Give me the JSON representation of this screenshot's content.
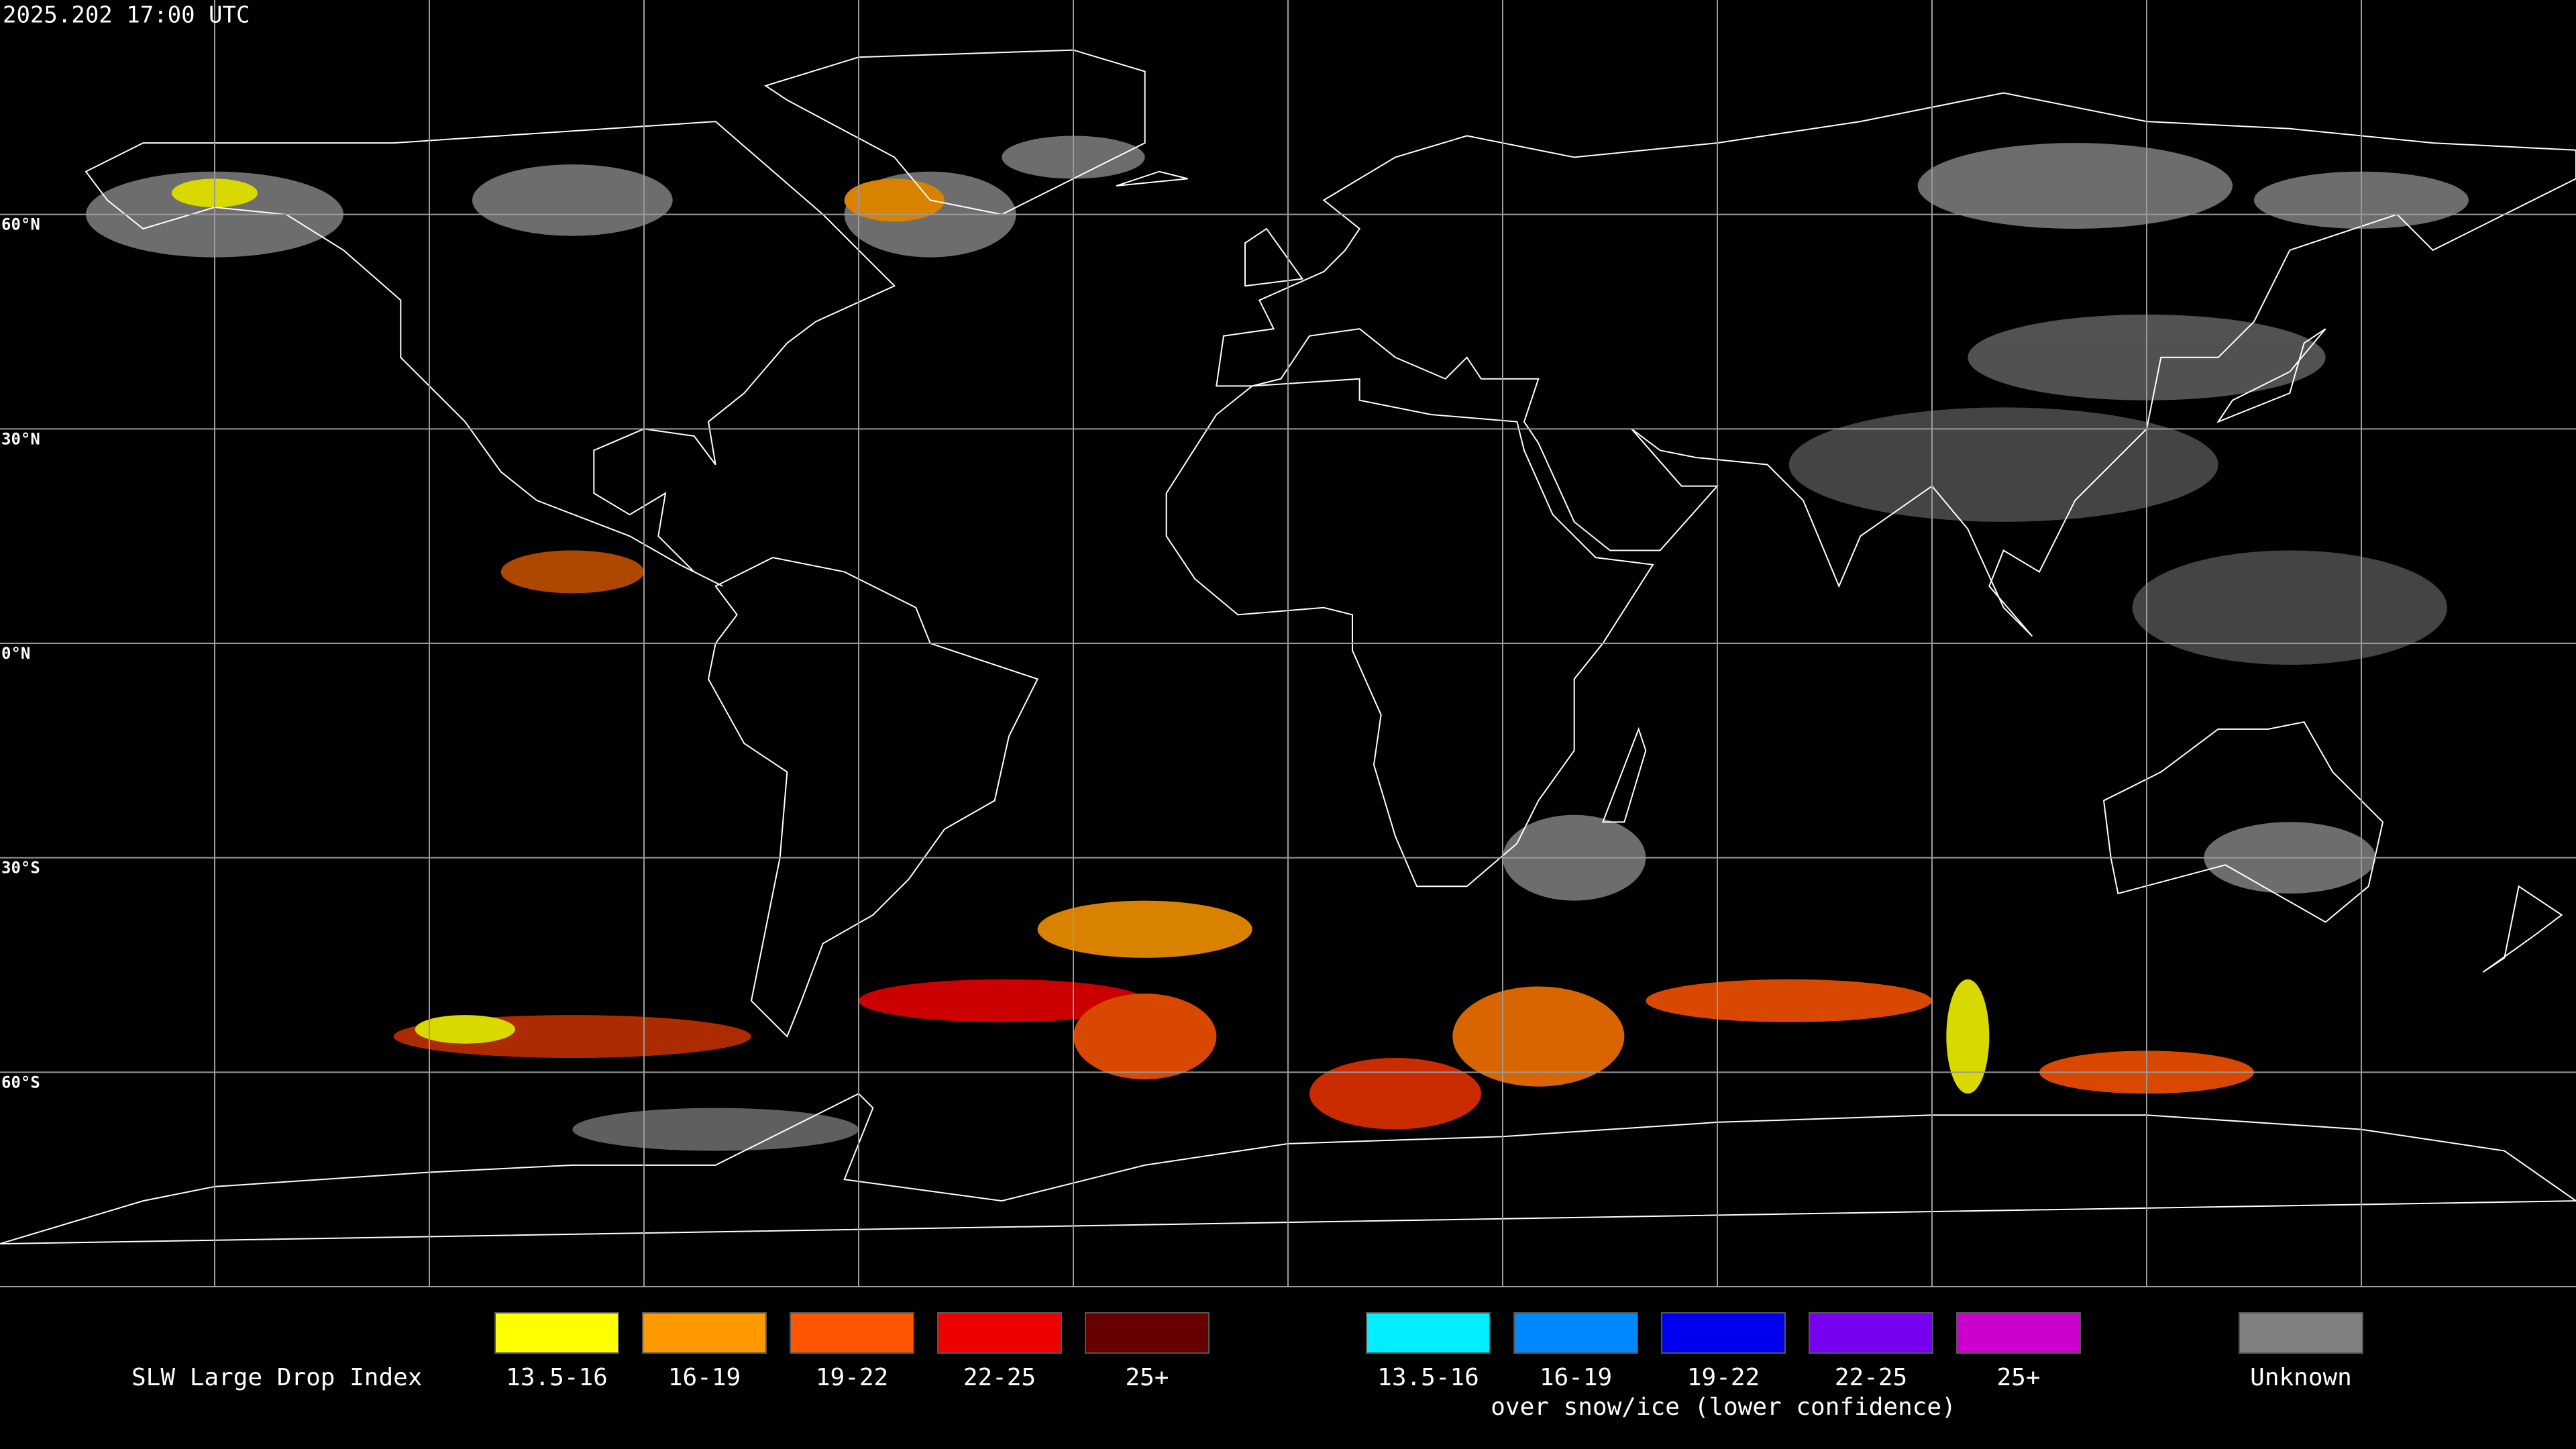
{
  "header": {
    "timestamp": "2025.202 17:00 UTC"
  },
  "map": {
    "latitude_labels": [
      "60°N",
      "30°N",
      "0°N",
      "30°S",
      "60°S"
    ]
  },
  "legend": {
    "title": "SLW Large Drop Index",
    "groups": [
      {
        "items": [
          {
            "label": "13.5-16",
            "color": "#ffff00"
          },
          {
            "label": "16-19",
            "color": "#ff9900"
          },
          {
            "label": "19-22",
            "color": "#ff5500"
          },
          {
            "label": "22-25",
            "color": "#ee0000"
          },
          {
            "label": "25+",
            "color": "#660000"
          }
        ]
      },
      {
        "items": [
          {
            "label": "13.5-16",
            "color": "#00eeff"
          },
          {
            "label": "16-19",
            "color": "#0088ff"
          },
          {
            "label": "19-22",
            "color": "#0000ee"
          },
          {
            "label": "22-25",
            "color": "#7700ee"
          },
          {
            "label": "25+",
            "color": "#cc00cc"
          }
        ],
        "caption": "over snow/ice (lower confidence)"
      },
      {
        "items": [
          {
            "label": "Unknown",
            "color": "#808080"
          }
        ]
      }
    ]
  }
}
